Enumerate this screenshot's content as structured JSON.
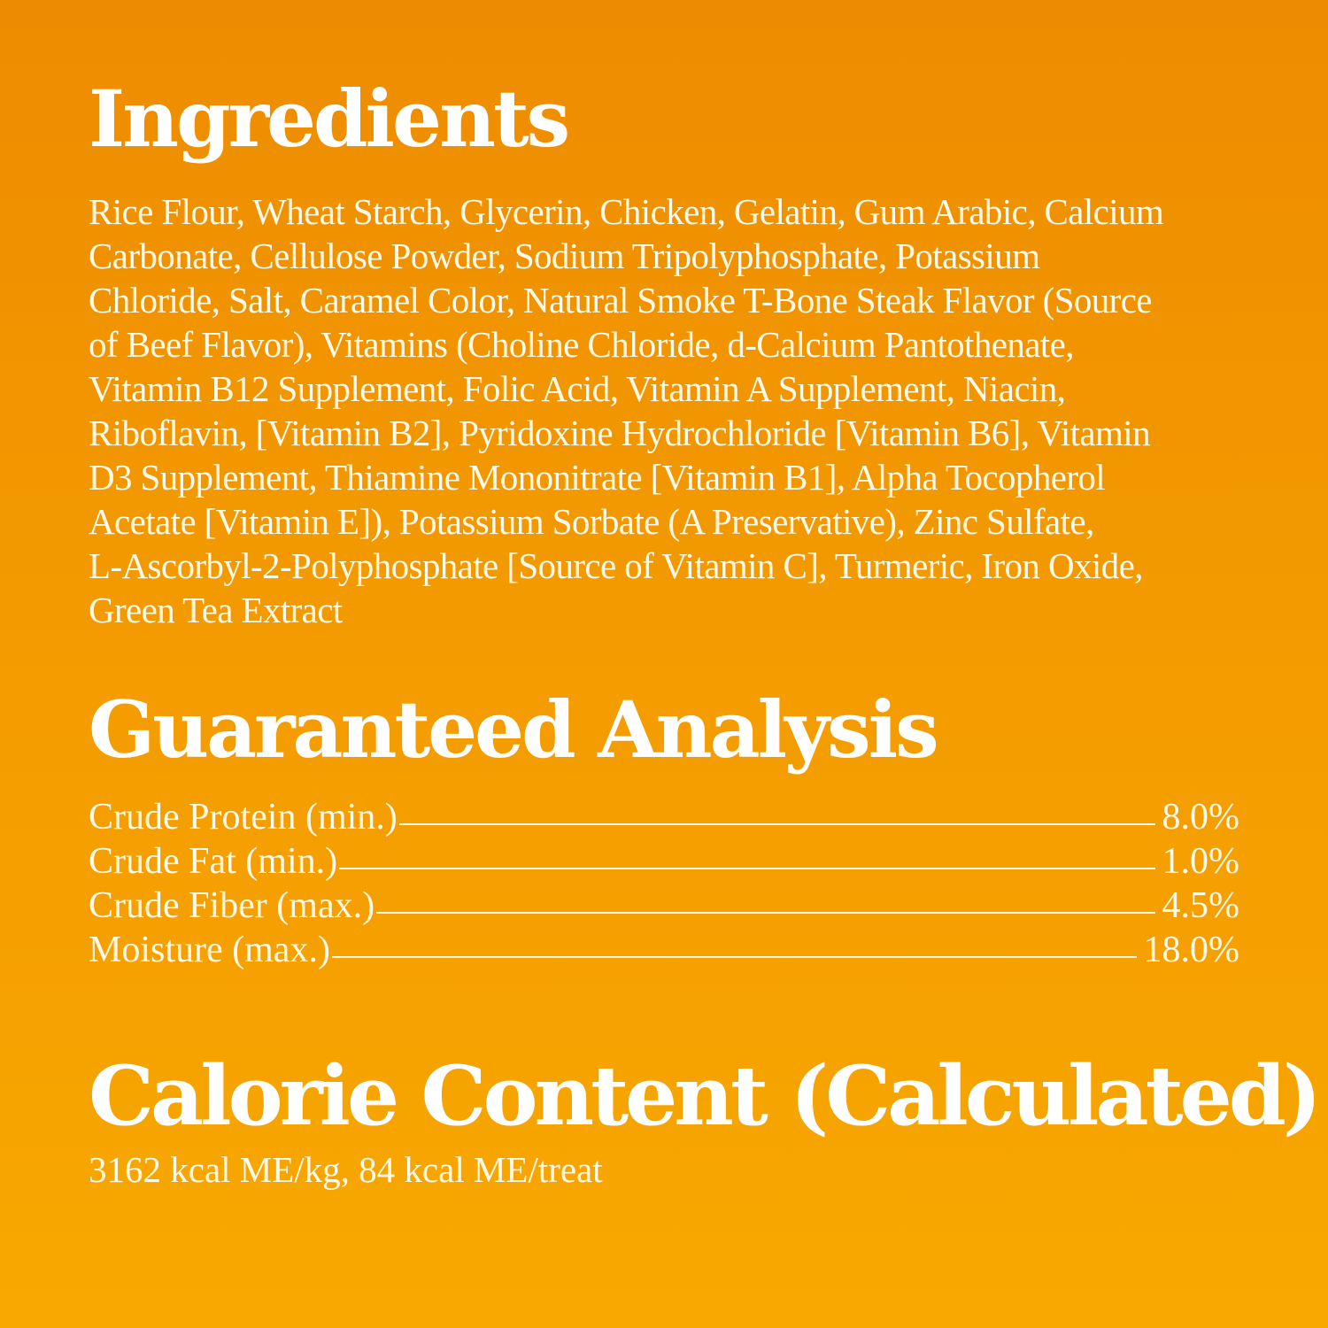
{
  "ingredients": {
    "title": "Ingredients",
    "lines": [
      "Rice Flour, Wheat Starch, Glycerin, Chicken, Gelatin, Gum Arabic, Calcium",
      "Carbonate, Cellulose Powder, Sodium Tripolyphosphate, Potassium",
      "Chloride, Salt, Caramel Color, Natural Smoke T-Bone Steak Flavor (Source",
      "of Beef Flavor), Vitamins (Choline Chloride, d-Calcium Pantothenate,",
      "Vitamin B12 Supplement, Folic Acid, Vitamin A Supplement, Niacin,",
      "Riboflavin, [Vitamin B2], Pyridoxine Hydrochloride [Vitamin B6], Vitamin",
      "D3 Supplement, Thiamine Mononitrate [Vitamin B1], Alpha Tocopherol",
      "Acetate [Vitamin E]), Potassium Sorbate (A Preservative), Zinc Sulfate,",
      "L-Ascorbyl-2-Polyphosphate [Source of Vitamin C], Turmeric, Iron Oxide,",
      "Green Tea Extract"
    ]
  },
  "analysis": {
    "title": "Guaranteed Analysis",
    "rows": [
      {
        "label": "Crude Protein (min.)",
        "value": "8.0%"
      },
      {
        "label": "Crude Fat (min.)",
        "value": "1.0%"
      },
      {
        "label": "Crude Fiber (max.)",
        "value": "4.5%"
      },
      {
        "label": "Moisture (max.)",
        "value": "18.0%"
      }
    ]
  },
  "calories": {
    "title": "Calorie Content (Calculated)",
    "text": "3162 kcal ME/kg, 84 kcal ME/treat"
  },
  "colors": {
    "background_top": "#ee8c00",
    "background_bottom": "#f8a800",
    "text": "#fff9ea"
  }
}
